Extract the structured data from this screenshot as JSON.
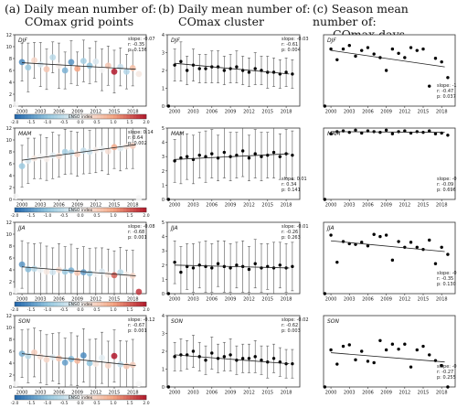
{
  "columns": [
    {
      "title": "(a) Daily mean number of:",
      "subtitle": "COmax grid points"
    },
    {
      "title": "(b) Daily mean number of:",
      "subtitle": "COmax cluster"
    },
    {
      "title": "(c) Season mean number of:",
      "subtitle": "COmax days"
    }
  ],
  "colorbar": {
    "label": "ENSO index",
    "ticks": [
      "-2.0",
      "-1.5",
      "-1.0",
      "-0.5",
      "0.0",
      "0.5",
      "1.0",
      "1.5",
      "2.0"
    ],
    "min": -2.0,
    "max": 2.0
  },
  "chart_data": [
    {
      "type": "scatter",
      "column": "a",
      "season": "DJF",
      "ylim": [
        0,
        12
      ],
      "yticks": [
        "0",
        "2",
        "4",
        "6",
        "8",
        "10",
        "12"
      ],
      "xticks": [
        "2000",
        "2003",
        "2006",
        "2009",
        "2012",
        "2015",
        "2018"
      ],
      "stats": {
        "slope": "slope: -0.07",
        "r": "r: -0.35",
        "p": "p: 0.136"
      },
      "x": [
        1999,
        2000,
        2001,
        2002,
        2003,
        2004,
        2005,
        2006,
        2007,
        2008,
        2009,
        2010,
        2011,
        2012,
        2013,
        2014,
        2015,
        2016,
        2017,
        2018,
        2019
      ],
      "y": [
        0.3,
        7.4,
        6.5,
        7.7,
        7.0,
        6.2,
        8.2,
        6.8,
        6.0,
        7.4,
        6.3,
        7.6,
        6.8,
        7.5,
        6.1,
        6.8,
        5.8,
        6.6,
        5.8,
        6.4,
        5.4
      ],
      "err": [
        0,
        3.2,
        4.1,
        3.0,
        3.7,
        3.4,
        2.6,
        3.8,
        3.1,
        3.6,
        2.8,
        3.5,
        3.0,
        3.4,
        3.5,
        3.3,
        3.6,
        3.2,
        2.9,
        3.0,
        0
      ],
      "enso": [
        0,
        -1.6,
        -0.9,
        0.4,
        -0.3,
        0.6,
        -0.6,
        0.1,
        -1.2,
        -1.5,
        1.0,
        -0.8,
        -1.0,
        -0.3,
        0.0,
        0.6,
        2.2,
        -0.5,
        -0.7,
        0.7,
        0.2
      ],
      "trend": [
        7.3,
        6.2
      ]
    },
    {
      "type": "scatter",
      "column": "b",
      "season": "DJF",
      "ylim": [
        0,
        4
      ],
      "yticks": [
        "0",
        "1",
        "2",
        "3",
        "4"
      ],
      "xticks": [
        "2000",
        "2003",
        "2006",
        "2009",
        "2012",
        "2015",
        "2018"
      ],
      "stats": {
        "slope": "slope: -0.03",
        "r": "r: -0.61",
        "p": "p: 0.004"
      },
      "x": [
        1999,
        2000,
        2001,
        2002,
        2003,
        2004,
        2005,
        2006,
        2007,
        2008,
        2009,
        2010,
        2011,
        2012,
        2013,
        2014,
        2015,
        2016,
        2017,
        2018,
        2019
      ],
      "y": [
        0.0,
        2.3,
        2.5,
        2.0,
        2.3,
        2.1,
        2.1,
        2.2,
        2.2,
        2.0,
        2.1,
        2.2,
        2.0,
        1.9,
        2.1,
        2.0,
        1.9,
        1.9,
        1.8,
        1.9,
        1.8
      ],
      "err": [
        0,
        0.9,
        1.1,
        0.8,
        0.9,
        0.8,
        0.8,
        0.9,
        0.9,
        0.8,
        0.8,
        0.9,
        0.8,
        0.8,
        0.9,
        0.8,
        0.9,
        0.8,
        0.8,
        0.8,
        0.8
      ],
      "trend": [
        2.4,
        1.8
      ]
    },
    {
      "type": "scatter",
      "column": "c",
      "season": "DJF",
      "ylim": [
        0,
        100
      ],
      "yticks": [],
      "xticks": [
        "2000",
        "2003",
        "2006",
        "2009",
        "2012",
        "2015",
        "2018"
      ],
      "stats": {
        "slope": "slope: -1.24",
        "r": "r: -0.47",
        "p": "p: 0.037"
      },
      "x": [
        1999,
        2000,
        2001,
        2002,
        2003,
        2004,
        2005,
        2006,
        2007,
        2008,
        2009,
        2010,
        2011,
        2012,
        2013,
        2014,
        2015,
        2016,
        2017,
        2018,
        2019
      ],
      "y": [
        0,
        80,
        65,
        80,
        85,
        70,
        78,
        82,
        73,
        68,
        50,
        80,
        74,
        68,
        82,
        78,
        80,
        28,
        67,
        62,
        40
      ],
      "err": [
        0,
        0,
        0,
        0,
        0,
        0,
        0,
        0,
        0,
        0,
        0,
        0,
        0,
        0,
        0,
        0,
        0,
        0,
        0,
        0,
        0
      ],
      "trend": [
        78,
        55
      ]
    },
    {
      "type": "scatter",
      "column": "a",
      "season": "MAM",
      "ylim": [
        0,
        12
      ],
      "yticks": [
        "0",
        "2",
        "4",
        "6",
        "8",
        "10",
        "12"
      ],
      "xticks": [
        "2000",
        "2003",
        "2006",
        "2009",
        "2012",
        "2015",
        "2018"
      ],
      "stats": {
        "slope": "slope: 0.14",
        "r": "r: 0.64",
        "p": "p: 0.002"
      },
      "x": [
        1999,
        2000,
        2001,
        2002,
        2003,
        2004,
        2005,
        2006,
        2007,
        2008,
        2009,
        2010,
        2011,
        2012,
        2013,
        2014,
        2015,
        2016,
        2017,
        2018,
        2019
      ],
      "y": [
        0.5,
        5.6,
        6.5,
        6.9,
        7.2,
        6.8,
        7.4,
        7.3,
        8.0,
        7.9,
        7.6,
        8.2,
        8.0,
        8.3,
        8.5,
        8.1,
        8.8,
        8.6,
        8.9,
        9.0,
        0.2
      ],
      "err": [
        0,
        3.5,
        3.8,
        3.4,
        3.7,
        3.6,
        3.9,
        3.5,
        3.8,
        3.6,
        3.7,
        3.9,
        3.6,
        3.8,
        3.7,
        3.9,
        3.6,
        3.8,
        3.7,
        3.8,
        0
      ],
      "enso": [
        0,
        -0.9,
        -0.3,
        0.2,
        0.0,
        0.1,
        -0.2,
        0.3,
        -0.8,
        -0.6,
        0.4,
        -0.5,
        -0.4,
        0.1,
        -0.1,
        0.3,
        0.9,
        -0.2,
        0.2,
        0.5,
        0
      ],
      "trend": [
        6.6,
        9.2
      ]
    },
    {
      "type": "scatter",
      "column": "b",
      "season": "MAM",
      "ylim": [
        0,
        5
      ],
      "yticks": [
        "0",
        "1",
        "2",
        "3",
        "4",
        "5"
      ],
      "xticks": [
        "2000",
        "2003",
        "2006",
        "2009",
        "2012",
        "2015",
        "2018"
      ],
      "stats": {
        "slope": "slope: 0.01",
        "r": "r: 0.34",
        "p": "p: 0.141"
      },
      "x": [
        1999,
        2000,
        2001,
        2002,
        2003,
        2004,
        2005,
        2006,
        2007,
        2008,
        2009,
        2010,
        2011,
        2012,
        2013,
        2014,
        2015,
        2016,
        2017,
        2018,
        2019
      ],
      "y": [
        0.0,
        2.7,
        2.9,
        3.0,
        2.8,
        3.1,
        3.0,
        3.2,
        2.9,
        3.3,
        3.0,
        3.1,
        3.4,
        2.9,
        3.2,
        3.0,
        3.1,
        3.3,
        3.0,
        3.2,
        3.1
      ],
      "err": [
        0,
        1.5,
        1.8,
        1.6,
        1.7,
        1.6,
        1.8,
        1.7,
        1.6,
        1.8,
        1.7,
        1.6,
        1.8,
        1.6,
        1.7,
        1.7,
        1.6,
        1.8,
        1.6,
        1.7,
        1.7
      ],
      "trend": [
        2.8,
        3.2
      ]
    },
    {
      "type": "scatter",
      "column": "c",
      "season": "MAM",
      "ylim": [
        0,
        100
      ],
      "yticks": [],
      "xticks": [
        "2000",
        "2003",
        "2006",
        "2009",
        "2012",
        "2015",
        "2018"
      ],
      "stats": {
        "slope": "slope: -0.05",
        "r": "r: -0.09",
        "p": "p: 0.696"
      },
      "x": [
        1999,
        2000,
        2001,
        2002,
        2003,
        2004,
        2005,
        2006,
        2007,
        2008,
        2009,
        2010,
        2011,
        2012,
        2013,
        2014,
        2015,
        2016,
        2017,
        2018,
        2019
      ],
      "y": [
        0,
        92,
        95,
        96,
        94,
        97,
        93,
        96,
        95,
        94,
        97,
        92,
        95,
        96,
        93,
        95,
        94,
        96,
        92,
        93,
        90
      ],
      "err": [
        0,
        0,
        0,
        0,
        0,
        0,
        0,
        0,
        0,
        0,
        0,
        0,
        0,
        0,
        0,
        0,
        0,
        0,
        0,
        0,
        0
      ],
      "trend": [
        95,
        94
      ]
    },
    {
      "type": "scatter",
      "column": "a",
      "season": "JJA",
      "ylim": [
        0,
        12
      ],
      "yticks": [
        "0",
        "2",
        "4",
        "6",
        "8",
        "10",
        "12"
      ],
      "xticks": [
        "2000",
        "2003",
        "2006",
        "2009",
        "2012",
        "2015",
        "2018"
      ],
      "stats": {
        "slope": "slope: -0.08",
        "r": "r: -0.68",
        "p": "p: 0.001"
      },
      "x": [
        1999,
        2000,
        2001,
        2002,
        2003,
        2004,
        2005,
        2006,
        2007,
        2008,
        2009,
        2010,
        2011,
        2012,
        2013,
        2014,
        2015,
        2016,
        2017,
        2018,
        2019
      ],
      "y": [
        0.5,
        4.9,
        4.1,
        4.2,
        4.0,
        3.7,
        3.6,
        4.0,
        3.7,
        3.9,
        3.5,
        3.6,
        3.4,
        3.3,
        3.7,
        3.2,
        3.1,
        3.6,
        3.2,
        3.0,
        0.3
      ],
      "err": [
        0,
        4.0,
        4.4,
        4.2,
        4.5,
        4.3,
        4.1,
        4.4,
        4.2,
        4.4,
        4.1,
        4.3,
        4.2,
        4.4,
        4.0,
        4.3,
        4.1,
        4.2,
        4.1,
        4.3,
        0
      ],
      "enso": [
        0,
        -1.5,
        -1.1,
        -0.6,
        -0.1,
        0.2,
        -0.4,
        0.3,
        -0.9,
        -1.2,
        0.6,
        -1.4,
        -0.9,
        0.0,
        -0.3,
        0.2,
        1.5,
        -0.6,
        0.1,
        0.4,
        1.8
      ],
      "trend": [
        4.5,
        3.0
      ]
    },
    {
      "type": "scatter",
      "column": "b",
      "season": "JJA",
      "ylim": [
        0,
        5
      ],
      "yticks": [
        "0",
        "1",
        "2",
        "3",
        "4",
        "5"
      ],
      "xticks": [
        "2000",
        "2003",
        "2006",
        "2009",
        "2012",
        "2015",
        "2018"
      ],
      "stats": {
        "slope": "slope: -0.01",
        "r": "r: -0.26",
        "p": "p: 0.263"
      },
      "x": [
        1999,
        2000,
        2001,
        2002,
        2003,
        2004,
        2005,
        2006,
        2007,
        2008,
        2009,
        2010,
        2011,
        2012,
        2013,
        2014,
        2015,
        2016,
        2017,
        2018,
        2019
      ],
      "y": [
        0.0,
        2.2,
        1.5,
        1.9,
        1.8,
        2.0,
        1.9,
        1.8,
        2.1,
        1.9,
        1.8,
        2.0,
        1.9,
        1.7,
        2.1,
        1.8,
        1.9,
        1.8,
        2.0,
        1.8,
        1.9
      ],
      "err": [
        0,
        1.5,
        1.8,
        1.6,
        1.7,
        1.6,
        1.8,
        1.7,
        1.6,
        1.8,
        1.7,
        1.6,
        1.8,
        1.6,
        1.7,
        1.7,
        1.6,
        1.8,
        1.6,
        1.7,
        1.7
      ],
      "trend": [
        2.0,
        1.8
      ]
    },
    {
      "type": "scatter",
      "column": "c",
      "season": "JJA",
      "ylim": [
        0,
        100
      ],
      "yticks": [],
      "xticks": [
        "2000",
        "2003",
        "2006",
        "2009",
        "2012",
        "2015",
        "2018"
      ],
      "stats": {
        "slope": "slope: -0.75",
        "r": "r: -0.35",
        "p": "p: 0.130"
      },
      "x": [
        1999,
        2000,
        2001,
        2002,
        2003,
        2004,
        2005,
        2006,
        2007,
        2008,
        2009,
        2010,
        2011,
        2012,
        2013,
        2014,
        2015,
        2016,
        2017,
        2018,
        2019
      ],
      "y": [
        0,
        82,
        44,
        73,
        70,
        69,
        72,
        67,
        83,
        80,
        82,
        47,
        73,
        65,
        72,
        65,
        62,
        75,
        42,
        65,
        55
      ],
      "err": [
        0,
        0,
        0,
        0,
        0,
        0,
        0,
        0,
        0,
        0,
        0,
        0,
        0,
        0,
        0,
        0,
        0,
        0,
        0,
        0,
        0
      ],
      "trend": [
        74,
        59
      ]
    },
    {
      "type": "scatter",
      "column": "a",
      "season": "SON",
      "ylim": [
        0,
        12
      ],
      "yticks": [
        "0",
        "2",
        "4",
        "6",
        "8",
        "10",
        "12"
      ],
      "xticks": [
        "2000",
        "2003",
        "2006",
        "2009",
        "2012",
        "2015",
        "2018"
      ],
      "stats": {
        "slope": "slope: -0.12",
        "r": "r: -0.67",
        "p": "p: 0.001"
      },
      "x": [
        1999,
        2000,
        2001,
        2002,
        2003,
        2004,
        2005,
        2006,
        2007,
        2008,
        2009,
        2010,
        2011,
        2012,
        2013,
        2014,
        2015,
        2016,
        2017,
        2018,
        2019
      ],
      "y": [
        0.5,
        5.6,
        5.2,
        5.8,
        5.1,
        4.6,
        5.0,
        4.8,
        4.1,
        4.7,
        4.4,
        5.3,
        4.0,
        3.9,
        4.9,
        3.6,
        5.2,
        3.8,
        3.5,
        3.7,
        0.5
      ],
      "err": [
        0,
        4.0,
        4.5,
        4.1,
        4.4,
        4.2,
        4.0,
        4.3,
        4.1,
        4.4,
        4.2,
        4.5,
        4.0,
        4.2,
        4.3,
        4.1,
        4.4,
        4.0,
        4.2,
        4.3,
        0
      ],
      "enso": [
        0,
        -1.2,
        -0.6,
        0.5,
        0.3,
        0.4,
        -0.2,
        0.6,
        -1.4,
        -1.1,
        0.8,
        -1.6,
        -1.0,
        0.2,
        -0.2,
        0.4,
        2.0,
        -0.5,
        0.6,
        0.5,
        0
      ],
      "trend": [
        5.6,
        3.6
      ]
    },
    {
      "type": "scatter",
      "column": "b",
      "season": "SON",
      "ylim": [
        0,
        4
      ],
      "yticks": [
        "0",
        "1",
        "2",
        "3",
        "4"
      ],
      "xticks": [
        "2000",
        "2003",
        "2006",
        "2009",
        "2012",
        "2015",
        "2018"
      ],
      "stats": {
        "slope": "slope: -0.02",
        "r": "r: -0.62",
        "p": "p: 0.003"
      },
      "x": [
        1999,
        2000,
        2001,
        2002,
        2003,
        2004,
        2005,
        2006,
        2007,
        2008,
        2009,
        2010,
        2011,
        2012,
        2013,
        2014,
        2015,
        2016,
        2017,
        2018,
        2019
      ],
      "y": [
        0.0,
        1.7,
        1.8,
        1.8,
        2.0,
        1.7,
        1.5,
        1.9,
        1.6,
        1.7,
        1.8,
        1.5,
        1.6,
        1.6,
        1.7,
        1.5,
        1.4,
        1.6,
        1.4,
        1.3,
        1.3
      ],
      "err": [
        0,
        0.8,
        0.9,
        0.8,
        0.9,
        0.8,
        0.8,
        0.9,
        0.8,
        0.8,
        0.9,
        0.8,
        0.8,
        0.8,
        0.9,
        0.8,
        0.9,
        0.8,
        0.8,
        0.8,
        0.8
      ],
      "trend": [
        1.8,
        1.3
      ]
    },
    {
      "type": "scatter",
      "column": "c",
      "season": "SON",
      "ylim": [
        0,
        100
      ],
      "yticks": [],
      "xticks": [
        "2000",
        "2003",
        "2006",
        "2009",
        "2012",
        "2015",
        "2018"
      ],
      "stats": {
        "slope": "slope: -0.65",
        "r": "r: -0.27",
        "p": "p: 0.255"
      },
      "x": [
        1999,
        2000,
        2001,
        2002,
        2003,
        2004,
        2005,
        2006,
        2007,
        2008,
        2009,
        2010,
        2011,
        2012,
        2013,
        2014,
        2015,
        2016,
        2017,
        2018,
        2019
      ],
      "y": [
        0,
        52,
        32,
        57,
        59,
        38,
        50,
        36,
        34,
        65,
        52,
        60,
        53,
        60,
        28,
        52,
        57,
        45,
        37,
        30,
        0
      ],
      "err": [
        0,
        0,
        0,
        0,
        0,
        0,
        0,
        0,
        0,
        0,
        0,
        0,
        0,
        0,
        0,
        0,
        0,
        0,
        0,
        0,
        0
      ],
      "trend": [
        48,
        35
      ]
    }
  ]
}
